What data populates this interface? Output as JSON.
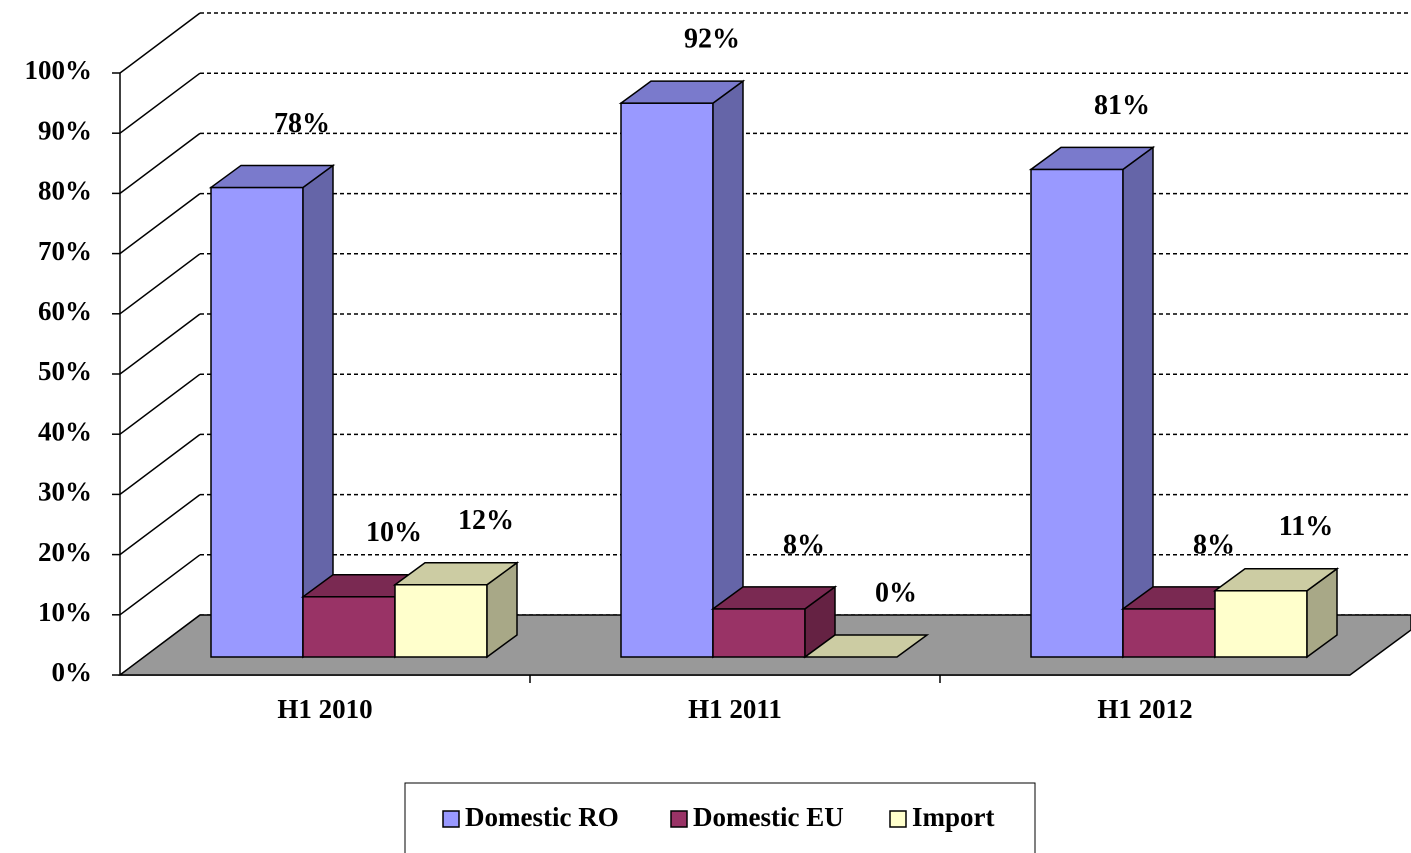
{
  "chart_data": {
    "type": "bar3d",
    "categories": [
      "H1 2010",
      "H1 2011",
      "H1 2012"
    ],
    "series": [
      {
        "name": "Domestic RO",
        "color": "#9999ff",
        "values": [
          78,
          92,
          81
        ],
        "value_labels": [
          "78%",
          "92%",
          "81%"
        ]
      },
      {
        "name": "Domestic EU",
        "color": "#993366",
        "values": [
          10,
          8,
          8
        ],
        "value_labels": [
          "10%",
          "8%",
          "8%"
        ]
      },
      {
        "name": "Import",
        "color": "#ffffcc",
        "values": [
          12,
          0,
          11
        ],
        "value_labels": [
          "12%",
          "0%",
          "11%"
        ]
      }
    ],
    "ylim": [
      0,
      100
    ],
    "yticks": [
      {
        "value": 0,
        "label": "0%"
      },
      {
        "value": 10,
        "label": "10%"
      },
      {
        "value": 20,
        "label": "20%"
      },
      {
        "value": 30,
        "label": "30%"
      },
      {
        "value": 40,
        "label": "40%"
      },
      {
        "value": 50,
        "label": "50%"
      },
      {
        "value": 60,
        "label": "60%"
      },
      {
        "value": 70,
        "label": "70%"
      },
      {
        "value": 80,
        "label": "80%"
      },
      {
        "value": 90,
        "label": "90%"
      },
      {
        "value": 100,
        "label": "100%"
      }
    ],
    "grid": true,
    "legend": "bottom"
  }
}
